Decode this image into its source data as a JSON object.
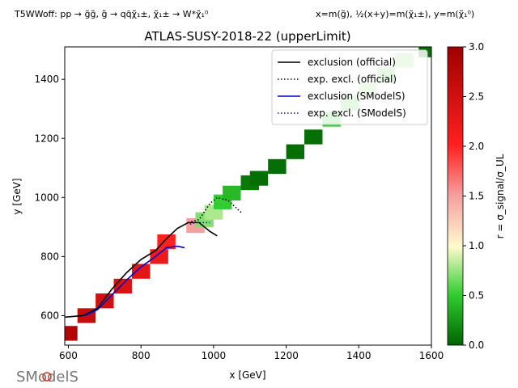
{
  "header": {
    "process": "T5WWoff: pp → g̃g̃, g̃ → qq̄χ̃₁±, χ̃₁± → W*χ̃₁⁰",
    "axes_def": "x=m(g̃), ½(x+y)=m(χ̃₁±), y=m(χ̃₁⁰)"
  },
  "logo": {
    "text": "SModelS"
  },
  "colors": {
    "official": "#000000",
    "smodels": "#0000cc",
    "cmap_low": "#006400",
    "cmap_mid": "#fffacd",
    "cmap_high": "#b00000"
  },
  "chart_data": {
    "type": "heatmap",
    "title": "ATLAS-SUSY-2018-22 (upperLimit)",
    "xlabel": "x [GeV]",
    "ylabel": "y [GeV]",
    "xlim": [
      590,
      1600
    ],
    "ylim": [
      500,
      1510
    ],
    "xticks": [
      "600",
      "800",
      "1000",
      "1200",
      "1400",
      "1600"
    ],
    "yticks": [
      "600",
      "800",
      "1000",
      "1200",
      "1400"
    ],
    "colorbar": {
      "label": "r = σ_signal/σ_UL",
      "range": [
        0,
        3
      ],
      "ticks": [
        "0.0",
        "0.5",
        "1.0",
        "1.5",
        "2.0",
        "2.5",
        "3.0"
      ]
    },
    "legend": {
      "position": "top-right",
      "entries": [
        "exclusion (official)",
        "exp. excl. (official)",
        "exclusion (SModelS)",
        "exp. excl. (SModelS)"
      ]
    },
    "cells": [
      [
        600,
        540,
        2.8
      ],
      [
        650,
        600,
        2.6
      ],
      [
        700,
        650,
        2.5
      ],
      [
        750,
        700,
        2.4
      ],
      [
        800,
        750,
        2.3
      ],
      [
        850,
        800,
        2.2
      ],
      [
        870,
        850,
        2.0
      ],
      [
        950,
        905,
        1.5
      ],
      [
        975,
        925,
        0.7
      ],
      [
        1000,
        950,
        0.8
      ],
      [
        1025,
        985,
        0.5
      ],
      [
        1050,
        1015,
        0.4
      ],
      [
        1100,
        1050,
        0.1
      ],
      [
        1125,
        1065,
        0.05
      ],
      [
        1175,
        1105,
        0.05
      ],
      [
        1225,
        1155,
        0.05
      ],
      [
        1275,
        1205,
        0.05
      ],
      [
        1325,
        1265,
        0.5
      ],
      [
        1375,
        1320,
        0.6
      ],
      [
        1425,
        1365,
        0.7
      ],
      [
        1475,
        1415,
        0.6
      ],
      [
        1525,
        1465,
        0.7
      ],
      [
        1590,
        1500,
        0.05
      ]
    ],
    "series": [
      {
        "name": "exclusion (official)",
        "style": "solid",
        "x": [
          590,
          640,
          680,
          720,
          760,
          800,
          840,
          870,
          900,
          930,
          960,
          990,
          1010
        ],
        "y": [
          595,
          600,
          625,
          690,
          745,
          790,
          820,
          860,
          895,
          915,
          915,
          885,
          870
        ]
      },
      {
        "name": "exp. excl. (official)",
        "style": "dotted",
        "x": [
          930,
          960,
          990,
          1010,
          1040,
          1080
        ],
        "y": [
          915,
          925,
          980,
          1000,
          990,
          945
        ]
      },
      {
        "name": "exclusion (SModelS)",
        "style": "solid",
        "x": [
          645,
          680,
          720,
          760,
          800,
          840,
          870,
          900,
          920
        ],
        "y": [
          600,
          620,
          670,
          720,
          765,
          800,
          830,
          835,
          830
        ]
      },
      {
        "name": "exp. excl. (SModelS)",
        "style": "dotted",
        "x": [
          935,
          950,
          970,
          990
        ],
        "y": [
          910,
          915,
          915,
          915
        ]
      }
    ]
  }
}
